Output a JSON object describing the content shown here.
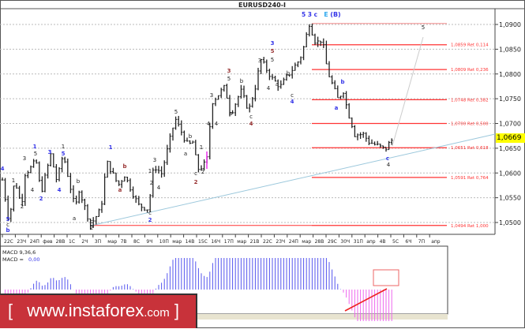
{
  "title": "EURUSD240-I",
  "current_price": "1,0669",
  "price_axis": {
    "ticks": [
      "1,0900",
      "1,0850",
      "1,0800",
      "1,0750",
      "1,0700",
      "1,0650",
      "1,0600",
      "1,0550",
      "1,0500"
    ],
    "values": [
      1.09,
      1.085,
      1.08,
      1.075,
      1.07,
      1.065,
      1.06,
      1.055,
      1.05
    ]
  },
  "time_axis": [
    "22С",
    "23Ч",
    "24П",
    "фев",
    "28В",
    "1С",
    "2Ч",
    "3П",
    "мар",
    "7В",
    "8С",
    "9Ч",
    "10П",
    "мар",
    "14В",
    "15С",
    "16Ч",
    "17П",
    "мар",
    "21В",
    "22С",
    "23Ч",
    "24П",
    "мар",
    "28В",
    "29С",
    "30Ч",
    "31П",
    "апр",
    "4В",
    "5С",
    "6Ч",
    "7П",
    "апр"
  ],
  "fib_levels": [
    {
      "price": 1.0902,
      "label": ""
    },
    {
      "price": 1.0859,
      "label": "1,0859 Ret 0,114"
    },
    {
      "price": 1.0809,
      "label": "1,0809 Ret 0,236"
    },
    {
      "price": 1.0748,
      "label": "1,0748 Ret 0,382"
    },
    {
      "price": 1.07,
      "label": "1,0700 Ret 0,500"
    },
    {
      "price": 1.0651,
      "label": "1,0651 Ret 0,618"
    },
    {
      "price": 1.0591,
      "label": "1,0591 Ret 0,764"
    },
    {
      "price": 1.0494,
      "label": "1,0494 Ret 1,000"
    }
  ],
  "chart_data": {
    "type": "candlestick",
    "symbol": "EURUSD",
    "timeframe": "H4",
    "ylim": [
      1.046,
      1.0935
    ],
    "grid": true,
    "price_path_bar_price": [
      [
        0,
        1.0586
      ],
      [
        2.5,
        1.0495
      ],
      [
        3.6,
        1.0567
      ],
      [
        4.7,
        1.058
      ],
      [
        6.7,
        1.0532
      ],
      [
        8,
        1.0599
      ],
      [
        10.8,
        1.0615
      ],
      [
        11.7,
        1.0631
      ],
      [
        13.6,
        1.0559
      ],
      [
        17,
        1.0637
      ],
      [
        19.2,
        1.0583
      ],
      [
        21.4,
        1.0639
      ],
      [
        25.6,
        1.0527
      ],
      [
        27,
        1.0567
      ],
      [
        31,
        1.0495
      ],
      [
        34.7,
        1.0527
      ],
      [
        36.7,
        1.0623
      ],
      [
        40.8,
        1.0575
      ],
      [
        43,
        1.0596
      ],
      [
        47.8,
        1.0535
      ],
      [
        51.4,
        1.0527
      ],
      [
        53.3,
        1.0615
      ],
      [
        56,
        1.0599
      ],
      [
        60.8,
        1.071
      ],
      [
        65.3,
        1.0655
      ],
      [
        67.2,
        1.0663
      ],
      [
        68.6,
        1.0607
      ],
      [
        70.8,
        1.0615
      ],
      [
        72.2,
        1.0631
      ],
      [
        73.6,
        1.0742
      ],
      [
        78.3,
        1.0774
      ],
      [
        80.3,
        1.0718
      ],
      [
        83.9,
        1.0766
      ],
      [
        86.7,
        1.0726
      ],
      [
        89.4,
        1.0782
      ],
      [
        90.8,
        1.083
      ],
      [
        95,
        1.079
      ],
      [
        97.8,
        1.0774
      ],
      [
        100.6,
        1.0798
      ],
      [
        104.7,
        1.083
      ],
      [
        106,
        1.0854
      ],
      [
        108,
        1.0902
      ],
      [
        110.3,
        1.0862
      ],
      [
        112.5,
        1.087
      ],
      [
        114.4,
        1.0806
      ],
      [
        116.4,
        1.0774
      ],
      [
        118,
        1.075
      ],
      [
        120,
        1.0766
      ],
      [
        121.4,
        1.0726
      ],
      [
        122.8,
        1.0702
      ],
      [
        124,
        1.0678
      ],
      [
        127,
        1.0678
      ],
      [
        129,
        1.0663
      ],
      [
        132,
        1.0655
      ],
      [
        134.7,
        1.0647
      ],
      [
        136,
        1.0659
      ],
      [
        137,
        1.0666
      ]
    ],
    "wave_labels": [
      {
        "t": "4",
        "c": "blue"
      },
      {
        "t": "5",
        "c": "blue"
      },
      {
        "t": "c",
        "c": "dark"
      },
      {
        "t": "b",
        "c": "blue"
      },
      {
        "t": "1",
        "c": "dark"
      },
      {
        "t": "2",
        "c": "dark"
      },
      {
        "t": "3",
        "c": "dark"
      },
      {
        "t": "5",
        "c": "dark"
      },
      {
        "t": "1",
        "c": "blue"
      },
      {
        "t": "4",
        "c": "dark"
      },
      {
        "t": "2",
        "c": "blue"
      },
      {
        "t": "3",
        "c": "blue"
      },
      {
        "t": "4",
        "c": "blue"
      },
      {
        "t": "5",
        "c": "blue"
      },
      {
        "t": "1",
        "c": "dark"
      },
      {
        "t": "a",
        "c": "dark"
      },
      {
        "t": "b",
        "c": "dark"
      },
      {
        "t": "c",
        "c": "dark"
      },
      {
        "t": "2",
        "c": "dark"
      },
      {
        "t": "1",
        "c": "blue"
      },
      {
        "t": "a",
        "c": "brown"
      },
      {
        "t": "b",
        "c": "brown"
      },
      {
        "t": "c",
        "c": "dark"
      },
      {
        "t": "2",
        "c": "blue"
      },
      {
        "t": "2",
        "c": "dark"
      },
      {
        "t": "1",
        "c": "dark"
      },
      {
        "t": "3",
        "c": "dark"
      },
      {
        "t": "4",
        "c": "dark"
      },
      {
        "t": "5",
        "c": "dark"
      },
      {
        "t": "a",
        "c": "dark"
      },
      {
        "t": "b",
        "c": "dark"
      },
      {
        "t": "c",
        "c": "dark"
      },
      {
        "t": "2",
        "c": "brown"
      },
      {
        "t": "2",
        "c": "dark"
      },
      {
        "t": "1",
        "c": "dark"
      },
      {
        "t": "4",
        "c": "dark"
      },
      {
        "t": "3",
        "c": "dark"
      },
      {
        "t": "4",
        "c": "dark"
      },
      {
        "t": "3",
        "c": "brown"
      },
      {
        "t": "5",
        "c": "dark"
      },
      {
        "t": "b",
        "c": "dark"
      },
      {
        "t": "a",
        "c": "dark"
      },
      {
        "t": "c",
        "c": "dark"
      },
      {
        "t": "4",
        "c": "brown"
      },
      {
        "t": "3",
        "c": "dark"
      },
      {
        "t": "3",
        "c": "blue"
      },
      {
        "t": "5",
        "c": "brown"
      },
      {
        "t": "5",
        "c": "dark"
      },
      {
        "t": "4",
        "c": "dark"
      },
      {
        "t": "a",
        "c": "dark"
      },
      {
        "t": "b",
        "c": "dark"
      },
      {
        "t": "c",
        "c": "dark"
      },
      {
        "t": "4",
        "c": "blue"
      },
      {
        "t": "a",
        "c": "blue"
      },
      {
        "t": "b",
        "c": "blue"
      },
      {
        "t": "c",
        "c": "blue"
      },
      {
        "t": "4",
        "c": "dark"
      },
      {
        "t": "5",
        "c": "dark"
      }
    ],
    "top_label": {
      "part1": "5 3 c",
      "part2": "E",
      "part3": "(B)"
    }
  },
  "macd": {
    "label": "MACD 9,36,6",
    "value_label": "MACD =",
    "value": "0,00"
  },
  "colors": {
    "blue": "#3535e8",
    "dark": "#222222",
    "brown": "#993333",
    "fib": "#ff3333",
    "trend": "#9cc8dc",
    "macd_pos": "#5555ee",
    "macd_neg": "#ee66ee",
    "banner": "#c8323a",
    "highlight": "#ffff00"
  },
  "banner": {
    "open": "[",
    "text": "www.instaforex",
    "tld": ".com",
    "close": "]"
  }
}
